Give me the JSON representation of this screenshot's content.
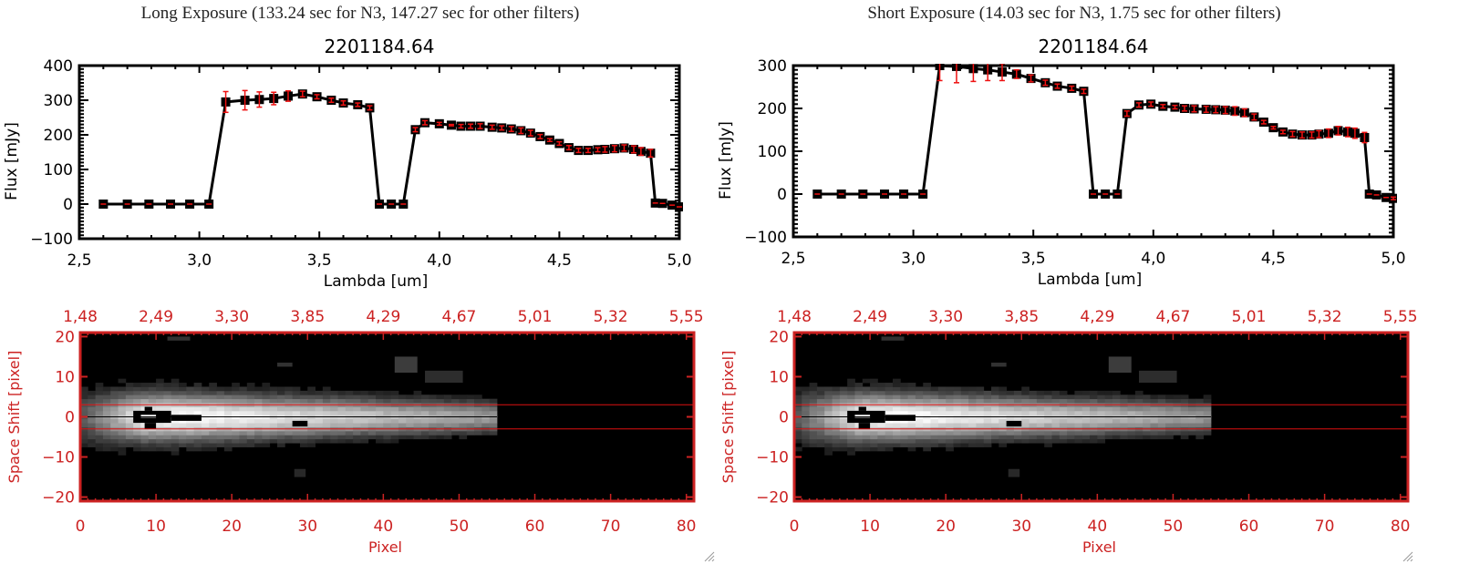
{
  "panels": [
    {
      "id": "left",
      "exposure_title": "Long Exposure (133.24 sec for N3, 147.27 sec for other filters)",
      "spectrum": {
        "title": "2201184.64",
        "xlabel": "Lambda [um]",
        "ylabel": "Flux [mJy]",
        "xlim": [
          2.5,
          5.0
        ],
        "ylim": [
          -100,
          400
        ],
        "xticks": [
          "2.5",
          "3.0",
          "3.5",
          "4.0",
          "4.5",
          "5.0"
        ],
        "xtick_values": [
          2.5,
          3.0,
          3.5,
          4.0,
          4.5,
          5.0
        ],
        "yticks": [
          "-100",
          "0",
          "100",
          "200",
          "300",
          "400"
        ],
        "ytick_values": [
          -100,
          0,
          100,
          200,
          300,
          400
        ]
      },
      "image": {
        "xlabel": "Pixel",
        "ylabel": "Space Shift [pixel]",
        "top_axis_label": "Lambda [um]",
        "xticks": [
          "0",
          "10",
          "20",
          "30",
          "40",
          "50",
          "60",
          "70",
          "80"
        ],
        "yticks": [
          "-20",
          "-10",
          "0",
          "10",
          "20"
        ],
        "top_ticks": [
          "1.48",
          "2.49",
          "3.30",
          "3.85",
          "4.29",
          "4.67",
          "5.01",
          "5.32",
          "5.55"
        ],
        "aperture_lines": [
          -3,
          3
        ],
        "center_line": 0
      }
    },
    {
      "id": "right",
      "exposure_title": "Short Exposure (14.03 sec for N3, 1.75 sec for other filters)",
      "spectrum": {
        "title": "2201184.64",
        "xlabel": "Lambda [um]",
        "ylabel": "Flux [mJy]",
        "xlim": [
          2.5,
          5.0
        ],
        "ylim": [
          -100,
          300
        ],
        "xticks": [
          "2.5",
          "3.0",
          "3.5",
          "4.0",
          "4.5",
          "5.0"
        ],
        "xtick_values": [
          2.5,
          3.0,
          3.5,
          4.0,
          4.5,
          5.0
        ],
        "yticks": [
          "-100",
          "0",
          "100",
          "200",
          "300"
        ],
        "ytick_values": [
          -100,
          0,
          100,
          200,
          300
        ]
      },
      "image": {
        "xlabel": "Pixel",
        "ylabel": "Space Shift [pixel]",
        "top_axis_label": "Lambda [um]",
        "xticks": [
          "0",
          "10",
          "20",
          "30",
          "40",
          "50",
          "60",
          "70",
          "80"
        ],
        "yticks": [
          "-20",
          "-10",
          "0",
          "10",
          "20"
        ],
        "top_ticks": [
          "1.48",
          "2.49",
          "3.30",
          "3.85",
          "4.29",
          "4.67",
          "5.01",
          "5.32",
          "5.55"
        ],
        "aperture_lines": [
          -3,
          3
        ],
        "center_line": 0
      }
    }
  ],
  "colors": {
    "axis": "#000000",
    "errorbar": "#ee1111",
    "image_axis": "#cc2222",
    "aperture_line": "#dd1111"
  },
  "chart_data": [
    {
      "type": "line",
      "title": "2201184.64",
      "subtitle": "Long Exposure (133.24 sec for N3, 147.27 sec for other filters)",
      "xlabel": "Lambda [um]",
      "ylabel": "Flux [mJy]",
      "xlim": [
        2.5,
        5.0
      ],
      "ylim": [
        -100,
        400
      ],
      "grid": false,
      "x": [
        2.6,
        2.7,
        2.79,
        2.88,
        2.96,
        3.04,
        3.11,
        3.19,
        3.25,
        3.31,
        3.37,
        3.43,
        3.49,
        3.55,
        3.6,
        3.66,
        3.71,
        3.75,
        3.8,
        3.85,
        3.9,
        3.94,
        4.0,
        4.05,
        4.09,
        4.13,
        4.17,
        4.22,
        4.26,
        4.3,
        4.34,
        4.38,
        4.42,
        4.46,
        4.5,
        4.54,
        4.58,
        4.62,
        4.66,
        4.69,
        4.73,
        4.77,
        4.81,
        4.84,
        4.88,
        4.9,
        4.93,
        4.97,
        5.0
      ],
      "y": [
        0,
        0,
        0,
        0,
        0,
        0,
        295,
        300,
        302,
        305,
        312,
        318,
        310,
        300,
        292,
        287,
        278,
        0,
        0,
        0,
        215,
        235,
        232,
        228,
        225,
        225,
        225,
        222,
        220,
        217,
        212,
        205,
        195,
        185,
        175,
        163,
        155,
        155,
        157,
        158,
        160,
        162,
        158,
        152,
        147,
        3,
        2,
        -3,
        -8
      ],
      "yerr": [
        0,
        0,
        0,
        0,
        0,
        0,
        30,
        28,
        22,
        18,
        15,
        8,
        6,
        6,
        6,
        5,
        6,
        0,
        0,
        0,
        6,
        6,
        4,
        2,
        5,
        6,
        7,
        6,
        6,
        7,
        8,
        8,
        6,
        4,
        5,
        6,
        6,
        6,
        6,
        8,
        9,
        9,
        10,
        11,
        11,
        0,
        0,
        0,
        0
      ]
    },
    {
      "type": "line",
      "title": "2201184.64",
      "subtitle": "Short Exposure (14.03 sec for N3, 1.75 sec for other filters)",
      "xlabel": "Lambda [um]",
      "ylabel": "Flux [mJy]",
      "xlim": [
        2.5,
        5.0
      ],
      "ylim": [
        -100,
        300
      ],
      "grid": false,
      "x": [
        2.6,
        2.7,
        2.79,
        2.88,
        2.96,
        3.04,
        3.11,
        3.18,
        3.25,
        3.31,
        3.37,
        3.43,
        3.49,
        3.55,
        3.6,
        3.66,
        3.71,
        3.75,
        3.8,
        3.85,
        3.89,
        3.94,
        3.99,
        4.04,
        4.09,
        4.13,
        4.17,
        4.22,
        4.26,
        4.3,
        4.34,
        4.38,
        4.42,
        4.46,
        4.5,
        4.54,
        4.58,
        4.62,
        4.66,
        4.69,
        4.73,
        4.77,
        4.81,
        4.84,
        4.88,
        4.9,
        4.93,
        4.97,
        5.0
      ],
      "y": [
        0,
        0,
        0,
        0,
        0,
        0,
        300,
        298,
        293,
        290,
        285,
        280,
        270,
        260,
        252,
        247,
        240,
        0,
        0,
        0,
        188,
        208,
        210,
        205,
        203,
        200,
        199,
        198,
        197,
        196,
        194,
        190,
        180,
        168,
        155,
        145,
        140,
        138,
        138,
        140,
        142,
        148,
        145,
        142,
        132,
        0,
        -2,
        -8,
        -10
      ],
      "yerr": [
        0,
        0,
        0,
        0,
        0,
        0,
        35,
        38,
        30,
        25,
        20,
        10,
        8,
        6,
        5,
        5,
        5,
        0,
        0,
        0,
        6,
        5,
        5,
        4,
        4,
        6,
        7,
        7,
        7,
        8,
        10,
        9,
        7,
        4,
        3,
        4,
        6,
        7,
        7,
        8,
        10,
        10,
        11,
        12,
        12,
        0,
        0,
        0,
        3
      ]
    }
  ]
}
